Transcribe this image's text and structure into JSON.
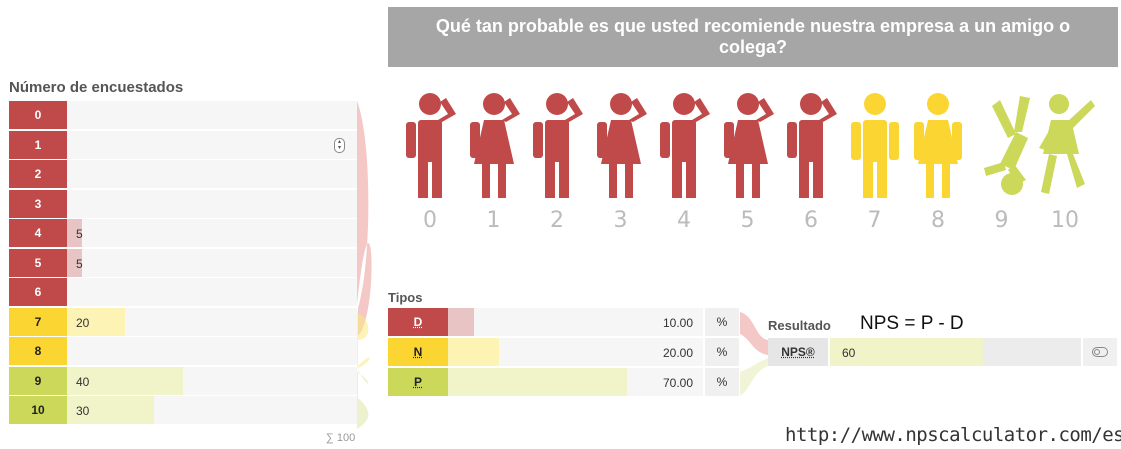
{
  "header": {
    "question": "Qué tan probable es que usted recomiende nuestra empresa a un amigo o colega?"
  },
  "colors": {
    "detractor": "#c0494a",
    "passive": "#fbd532",
    "promoter": "#cbd85a",
    "detractor_light": "#e9c4c4",
    "passive_light": "#fdf3b4",
    "promoter_light": "#f1f4c8"
  },
  "respondents": {
    "title": "Número de encuestados",
    "sum_label": "∑ 100",
    "total": 100,
    "rows": [
      {
        "score": "0",
        "value": "",
        "count": 0,
        "group": "detractor"
      },
      {
        "score": "1",
        "value": "",
        "count": 0,
        "group": "detractor",
        "has_spinner": true
      },
      {
        "score": "2",
        "value": "",
        "count": 0,
        "group": "detractor"
      },
      {
        "score": "3",
        "value": "",
        "count": 0,
        "group": "detractor"
      },
      {
        "score": "4",
        "value": "5",
        "count": 5,
        "group": "detractor"
      },
      {
        "score": "5",
        "value": "5",
        "count": 5,
        "group": "detractor"
      },
      {
        "score": "6",
        "value": "",
        "count": 0,
        "group": "detractor"
      },
      {
        "score": "7",
        "value": "20",
        "count": 20,
        "group": "passive"
      },
      {
        "score": "8",
        "value": "",
        "count": 0,
        "group": "passive"
      },
      {
        "score": "9",
        "value": "40",
        "count": 40,
        "group": "promoter"
      },
      {
        "score": "10",
        "value": "30",
        "count": 30,
        "group": "promoter"
      }
    ]
  },
  "figures": {
    "numbers": [
      "0",
      "1",
      "2",
      "3",
      "4",
      "5",
      "6",
      "7",
      "8",
      "9",
      "10"
    ],
    "icons": [
      "person-scratching-head-icon",
      "person-dress-scratching-head-icon",
      "person-scratching-head-icon",
      "person-dress-scratching-head-icon",
      "person-scratching-head-icon",
      "person-dress-scratching-head-icon",
      "person-scratching-head-icon",
      "person-standing-icon",
      "person-dress-standing-icon",
      "person-handstand-icon",
      "person-dress-jumping-icon"
    ]
  },
  "types": {
    "title": "Tipos",
    "rows": [
      {
        "label": "D",
        "value": "10.00",
        "percent": 10,
        "unit": "%",
        "group": "detractor"
      },
      {
        "label": "N",
        "value": "20.00",
        "percent": 20,
        "unit": "%",
        "group": "passive"
      },
      {
        "label": "P",
        "value": "70.00",
        "percent": 70,
        "unit": "%",
        "group": "promoter"
      }
    ]
  },
  "result": {
    "title": "Resultado",
    "formula": "NPS = P - D",
    "label": "NPS®",
    "value": "60",
    "percent": 60,
    "toggle_icon": "toggle-icon"
  },
  "footer": {
    "url": "http://www.npscalculator.com/es"
  }
}
